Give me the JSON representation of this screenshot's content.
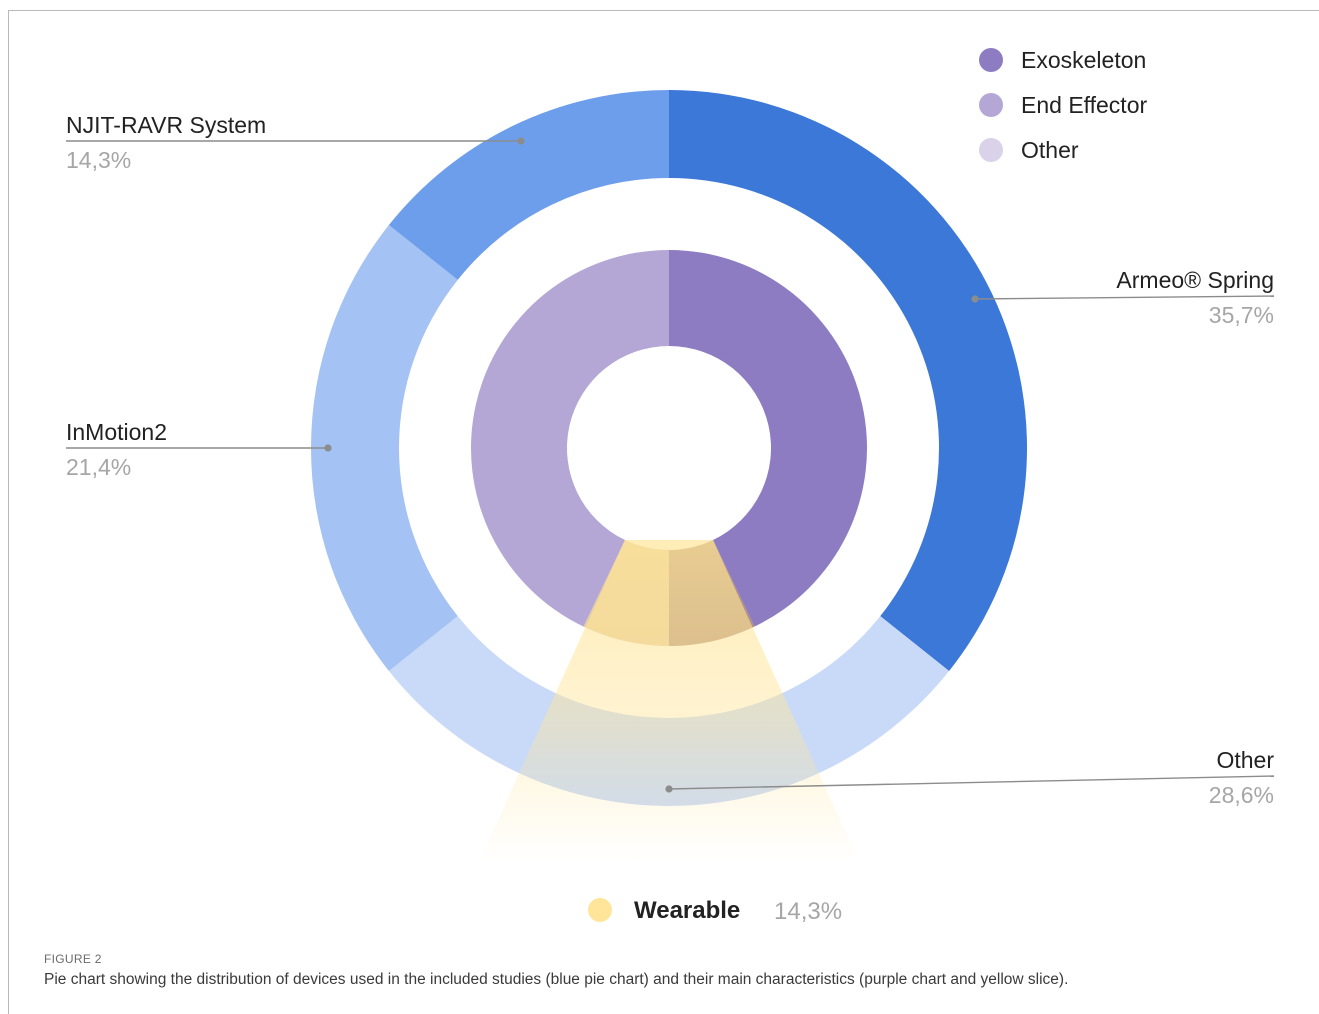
{
  "figure": {
    "label": "FIGURE 2",
    "caption": "Pie chart showing the distribution of devices used in the included studies (blue pie chart) and their main characteristics (purple chart and yellow slice)."
  },
  "chart_data": [
    {
      "type": "pie",
      "variant": "donut-outer",
      "title": "",
      "slices": [
        {
          "label": "Armeo® Spring",
          "value": 35.7,
          "value_text": "35,7%",
          "color": "#3b78d8"
        },
        {
          "label": "Other",
          "value": 28.6,
          "value_text": "28,6%",
          "color": "#c9daf8"
        },
        {
          "label": "InMotion2",
          "value": 21.4,
          "value_text": "21,4%",
          "color": "#a4c2f4"
        },
        {
          "label": "NJIT-RAVR System",
          "value": 14.3,
          "value_text": "14,3%",
          "color": "#6d9eeb"
        }
      ]
    },
    {
      "type": "pie",
      "variant": "donut-inner",
      "title": "",
      "legend_position": "top-right",
      "slices": [
        {
          "label": "Exoskeleton",
          "value": 42.9,
          "color": "#8e7cc3"
        },
        {
          "label": "Other",
          "value": 7.1,
          "color": "#b09080"
        },
        {
          "label": "Other",
          "value": 7.1,
          "color": "#e6cda0"
        },
        {
          "label": "End Effector",
          "value": 42.9,
          "color": "#b4a7d6"
        }
      ],
      "legend": [
        {
          "label": "Exoskeleton",
          "color": "#8e7cc3"
        },
        {
          "label": "End Effector",
          "color": "#b4a7d6"
        },
        {
          "label": "Other",
          "color": "#d9d2e9"
        }
      ]
    },
    {
      "type": "pie",
      "variant": "highlight-slice",
      "slices": [
        {
          "label": "Wearable",
          "value": 14.3,
          "value_text": "14,3%",
          "color": "#ffe599"
        }
      ]
    }
  ]
}
